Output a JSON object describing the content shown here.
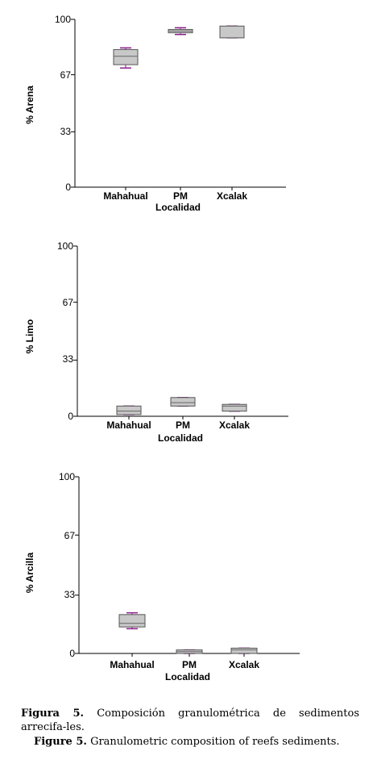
{
  "charts": [
    {
      "ylabel": "% Arena",
      "xlabel": "Localidad",
      "yticks": [
        "0",
        "33",
        "67",
        "100"
      ],
      "categories": [
        "Mahahual",
        "PM",
        "Xcalak"
      ]
    },
    {
      "ylabel": "% Limo",
      "xlabel": "Localidad",
      "yticks": [
        "0",
        "33",
        "67",
        "100"
      ],
      "categories": [
        "Mahahual",
        "PM",
        "Xcalak"
      ]
    },
    {
      "ylabel": "% Arcilla",
      "xlabel": "Localidad",
      "yticks": [
        "0",
        "33",
        "67",
        "100"
      ],
      "categories": [
        "Mahahual",
        "PM",
        "Xcalak"
      ]
    }
  ],
  "caption": {
    "es_label": "Figura 5.",
    "es_text": "Composición granulométrica de sedimentos arrecifa-les.",
    "en_label": "Figure 5.",
    "en_text": "Granulometric composition of reefs sediments."
  },
  "colors": {
    "box_fill": "#c8c8c8",
    "whisker": "#8b1a8b",
    "axis": "#000000"
  },
  "chart_data": [
    {
      "type": "box",
      "ylabel": "% Arena",
      "xlabel": "Localidad",
      "categories": [
        "Mahahual",
        "PM",
        "Xcalak"
      ],
      "ylim": [
        0,
        100
      ],
      "series": [
        {
          "min": [
            71,
            91,
            89
          ],
          "q1": [
            73,
            92,
            89
          ],
          "median": [
            78,
            93,
            89
          ],
          "q3": [
            82,
            94,
            96
          ],
          "max": [
            83,
            95,
            96
          ]
        }
      ]
    },
    {
      "type": "box",
      "ylabel": "% Limo",
      "xlabel": "Localidad",
      "categories": [
        "Mahahual",
        "PM",
        "Xcalak"
      ],
      "ylim": [
        0,
        100
      ],
      "series": [
        {
          "min": [
            1,
            6,
            3
          ],
          "q1": [
            1,
            6,
            3
          ],
          "median": [
            3,
            8,
            6
          ],
          "q3": [
            6,
            11,
            7
          ],
          "max": [
            6,
            11,
            7
          ]
        }
      ]
    },
    {
      "type": "box",
      "ylabel": "% Arcilla",
      "xlabel": "Localidad",
      "categories": [
        "Mahahual",
        "PM",
        "Xcalak"
      ],
      "ylim": [
        0,
        100
      ],
      "series": [
        {
          "min": [
            14,
            0,
            0
          ],
          "q1": [
            15,
            0,
            0
          ],
          "median": [
            17,
            1,
            2
          ],
          "q3": [
            22,
            2,
            3
          ],
          "max": [
            23,
            2,
            3
          ]
        }
      ]
    }
  ]
}
